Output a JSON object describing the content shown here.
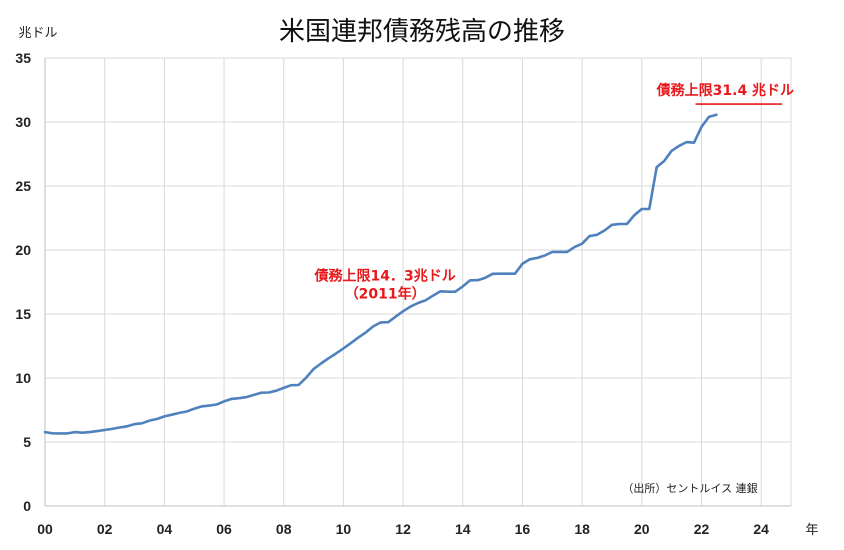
{
  "chart_data": {
    "type": "line",
    "title": "米国連邦債務残高の推移",
    "ylabel": "兆ドル",
    "xlabel": "年",
    "xlim": [
      2000,
      2025
    ],
    "ylim": [
      0,
      35
    ],
    "grid": true,
    "x_ticks": [
      {
        "value": 2000,
        "label": "00"
      },
      {
        "value": 2002,
        "label": "02"
      },
      {
        "value": 2004,
        "label": "04"
      },
      {
        "value": 2006,
        "label": "06"
      },
      {
        "value": 2008,
        "label": "08"
      },
      {
        "value": 2010,
        "label": "10"
      },
      {
        "value": 2012,
        "label": "12"
      },
      {
        "value": 2014,
        "label": "14"
      },
      {
        "value": 2016,
        "label": "16"
      },
      {
        "value": 2018,
        "label": "18"
      },
      {
        "value": 2020,
        "label": "20"
      },
      {
        "value": 2022,
        "label": "22"
      },
      {
        "value": 2024,
        "label": "24"
      }
    ],
    "y_ticks": [
      0,
      5,
      10,
      15,
      20,
      25,
      30,
      35
    ],
    "series": [
      {
        "color": "#4f81bd",
        "x": [
          2000.0,
          2000.25,
          2000.5,
          2000.75,
          2001.0,
          2001.25,
          2001.5,
          2001.75,
          2002.0,
          2002.25,
          2002.5,
          2002.75,
          2003.0,
          2003.25,
          2003.5,
          2003.75,
          2004.0,
          2004.25,
          2004.5,
          2004.75,
          2005.0,
          2005.25,
          2005.5,
          2005.75,
          2006.0,
          2006.25,
          2006.5,
          2006.75,
          2007.0,
          2007.25,
          2007.5,
          2007.75,
          2008.0,
          2008.25,
          2008.5,
          2008.75,
          2009.0,
          2009.25,
          2009.5,
          2009.75,
          2010.0,
          2010.25,
          2010.5,
          2010.75,
          2011.0,
          2011.25,
          2011.5,
          2011.75,
          2012.0,
          2012.25,
          2012.5,
          2012.75,
          2013.0,
          2013.25,
          2013.5,
          2013.75,
          2014.0,
          2014.25,
          2014.5,
          2014.75,
          2015.0,
          2015.25,
          2015.5,
          2015.75,
          2016.0,
          2016.25,
          2016.5,
          2016.75,
          2017.0,
          2017.25,
          2017.5,
          2017.75,
          2018.0,
          2018.25,
          2018.5,
          2018.75,
          2019.0,
          2019.25,
          2019.5,
          2019.75,
          2020.0,
          2020.25,
          2020.5,
          2020.75,
          2021.0,
          2021.25,
          2021.5,
          2021.75,
          2022.0,
          2022.25,
          2022.5
        ],
        "values": [
          5.77,
          5.68,
          5.67,
          5.67,
          5.77,
          5.73,
          5.77,
          5.85,
          5.94,
          6.02,
          6.13,
          6.23,
          6.4,
          6.46,
          6.67,
          6.8,
          7.0,
          7.13,
          7.27,
          7.38,
          7.6,
          7.78,
          7.84,
          7.93,
          8.17,
          8.37,
          8.42,
          8.51,
          8.68,
          8.85,
          8.87,
          9.01,
          9.23,
          9.44,
          9.45,
          10.02,
          10.7,
          11.13,
          11.54,
          11.91,
          12.31,
          12.73,
          13.16,
          13.56,
          14.03,
          14.34,
          14.36,
          14.79,
          15.22,
          15.58,
          15.86,
          16.07,
          16.43,
          16.77,
          16.74,
          16.74,
          17.16,
          17.63,
          17.64,
          17.82,
          18.14,
          18.15,
          18.15,
          18.15,
          18.92,
          19.27,
          19.38,
          19.57,
          19.85,
          19.85,
          19.85,
          20.24,
          20.49,
          21.09,
          21.19,
          21.52,
          21.97,
          22.03,
          22.03,
          22.72,
          23.2,
          23.21,
          26.48,
          26.95,
          27.75,
          28.13,
          28.43,
          28.38,
          29.62,
          30.4,
          30.57
        ]
      }
    ],
    "annotations": [
      {
        "text": "債務上限14．3兆ドル",
        "x": 2011.4,
        "y": 17.6
      },
      {
        "text": "（2011年）",
        "x": 2011.4,
        "y": 16.2
      },
      {
        "text": "債務上限31.4 兆ドル",
        "x": 2022.8,
        "y": 32.1
      }
    ],
    "debt_ceiling_line": {
      "value": 31.4,
      "x_start": 2021.8,
      "x_end": 2024.7,
      "color": "#e8191c"
    },
    "source_note": "（出所）セントルイス 連銀"
  }
}
